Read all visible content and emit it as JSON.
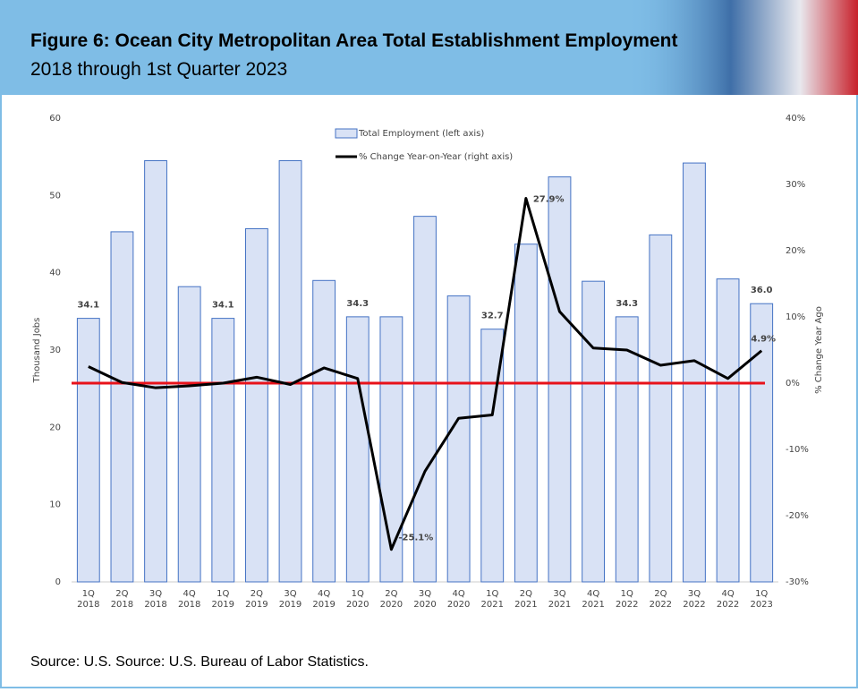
{
  "chart_data": {
    "type": "bar_line",
    "title": "Figure 6: Ocean City Metropolitan Area Total Establishment Employment",
    "subtitle": "2018 through 1st Quarter 2023",
    "source": "Source: U.S. Source: U.S. Bureau of Labor Statistics.",
    "y_label": "Thousand Jobs",
    "y2_label": "% Change Year Ago",
    "categories": [
      [
        "1Q",
        "2018"
      ],
      [
        "2Q",
        "2018"
      ],
      [
        "3Q",
        "2018"
      ],
      [
        "4Q",
        "2018"
      ],
      [
        "1Q",
        "2019"
      ],
      [
        "2Q",
        "2019"
      ],
      [
        "3Q",
        "2019"
      ],
      [
        "4Q",
        "2019"
      ],
      [
        "1Q",
        "2020"
      ],
      [
        "2Q",
        "2020"
      ],
      [
        "3Q",
        "2020"
      ],
      [
        "4Q",
        "2020"
      ],
      [
        "1Q",
        "2021"
      ],
      [
        "2Q",
        "2021"
      ],
      [
        "3Q",
        "2021"
      ],
      [
        "4Q",
        "2021"
      ],
      [
        "1Q",
        "2022"
      ],
      [
        "2Q",
        "2022"
      ],
      [
        "3Q",
        "2022"
      ],
      [
        "4Q",
        "2022"
      ],
      [
        "1Q",
        "2023"
      ]
    ],
    "series": [
      {
        "name": "Total Employment (left axis)",
        "type": "bar",
        "color": "#d9e2f5",
        "stroke": "#4472c4",
        "values": [
          34.1,
          45.3,
          54.5,
          38.2,
          34.1,
          45.7,
          54.5,
          39.0,
          34.3,
          34.3,
          47.3,
          37.0,
          32.7,
          43.7,
          52.4,
          38.9,
          34.3,
          44.9,
          54.2,
          39.2,
          36.0
        ],
        "value_labels": [
          "34.1",
          null,
          null,
          null,
          "34.1",
          null,
          null,
          null,
          "34.3",
          null,
          null,
          null,
          "32.7",
          null,
          null,
          null,
          "34.3",
          null,
          null,
          null,
          "36.0"
        ]
      },
      {
        "name": "% Change Year-on-Year (right axis)",
        "type": "line",
        "axis": "y2",
        "color": "#000000",
        "values": [
          2.5,
          0.1,
          -0.7,
          -0.4,
          0.0,
          0.9,
          -0.2,
          2.3,
          0.7,
          -25.1,
          -13.3,
          -5.3,
          -4.8,
          27.9,
          10.8,
          5.3,
          5.0,
          2.7,
          3.4,
          0.7,
          4.9
        ],
        "value_labels": [
          null,
          null,
          null,
          null,
          null,
          null,
          null,
          null,
          null,
          "-25.1%",
          null,
          null,
          null,
          "27.9%",
          null,
          null,
          null,
          null,
          null,
          null,
          "4.9%"
        ]
      }
    ],
    "reference_line": {
      "value": 0,
      "color": "#e8121a"
    },
    "ylim": [
      0,
      60
    ],
    "yticks": [
      0,
      10,
      20,
      30,
      40,
      50,
      60
    ],
    "y2lim": [
      -30,
      40
    ],
    "y2ticks": [
      {
        "value": -30,
        "label": "-30%"
      },
      {
        "value": -20,
        "label": "-20%"
      },
      {
        "value": -10,
        "label": "-10%"
      },
      {
        "value": 0,
        "label": "0%"
      },
      {
        "value": 10,
        "label": "10%"
      },
      {
        "value": 20,
        "label": "20%"
      },
      {
        "value": 30,
        "label": "30%"
      },
      {
        "value": 40,
        "label": "40%"
      }
    ]
  }
}
